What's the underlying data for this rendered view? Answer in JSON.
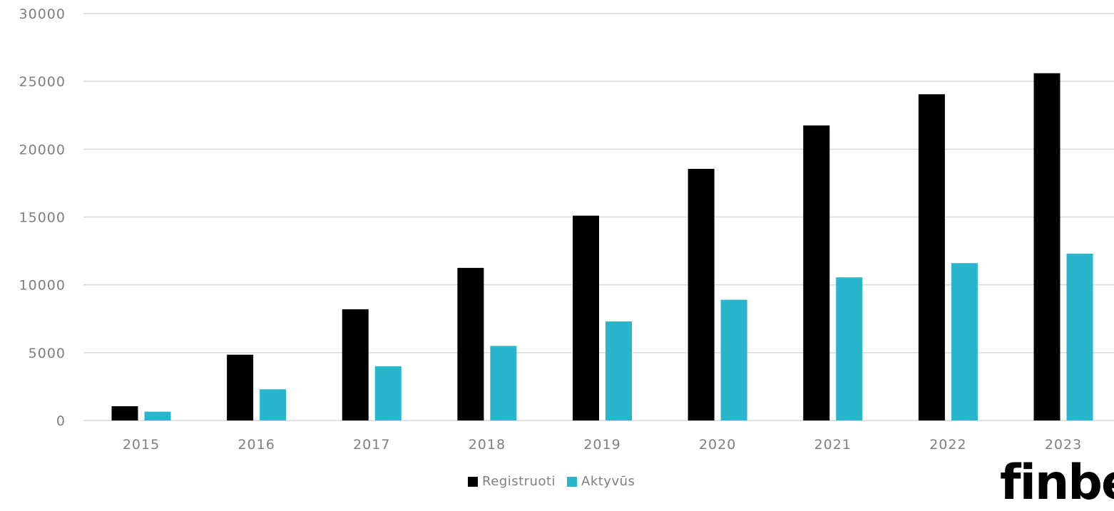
{
  "chart_data": {
    "type": "bar",
    "categories": [
      "2015",
      "2016",
      "2017",
      "2018",
      "2019",
      "2020",
      "2021",
      "2022",
      "2023"
    ],
    "series": [
      {
        "name": "Registruoti",
        "color": "#000000",
        "values": [
          1050,
          4850,
          8200,
          11250,
          15100,
          18550,
          21750,
          24050,
          25600
        ]
      },
      {
        "name": "Aktyvūs",
        "color": "#29b6cc",
        "values": [
          650,
          2300,
          4000,
          5500,
          7300,
          8900,
          10550,
          11600,
          12300
        ]
      }
    ],
    "y_ticks": [
      "0",
      "5000",
      "10000",
      "15000",
      "20000",
      "25000",
      "30000"
    ],
    "ylim": [
      0,
      30000
    ],
    "grid": true,
    "legend_position": "bottom-center"
  },
  "logo": {
    "text": "finbe"
  }
}
